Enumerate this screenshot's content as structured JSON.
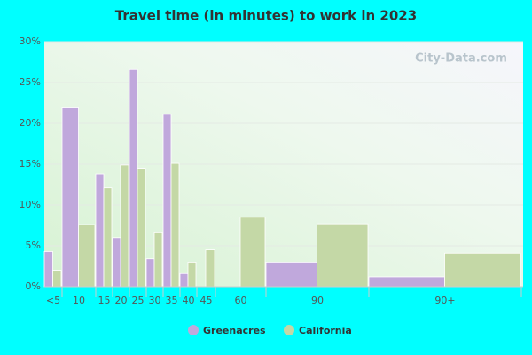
{
  "chart_data": {
    "type": "bar",
    "title": "Travel time (in minutes) to work in 2023",
    "watermark": "City-Data.com",
    "categories": [
      "<5",
      "10",
      "15",
      "20",
      "25",
      "30",
      "35",
      "40",
      "45",
      "60",
      "90",
      "90+"
    ],
    "series": [
      {
        "name": "Greenacres",
        "color": "#c0a8dc",
        "values": [
          4.3,
          21.9,
          13.8,
          6.0,
          26.6,
          3.4,
          21.1,
          1.6,
          0,
          0,
          3.0,
          1.2
        ]
      },
      {
        "name": "California",
        "color": "#c4d8a6",
        "values": [
          2.0,
          7.6,
          12.1,
          14.9,
          14.5,
          6.7,
          15.1,
          3.0,
          4.5,
          8.5,
          7.7,
          4.1
        ]
      }
    ],
    "ylim": [
      0,
      30
    ],
    "yticks": [
      {
        "value": 0,
        "label": "0%"
      },
      {
        "value": 5,
        "label": "5%"
      },
      {
        "value": 10,
        "label": "10%"
      },
      {
        "value": 15,
        "label": "15%"
      },
      {
        "value": 20,
        "label": "20%"
      },
      {
        "value": 25,
        "label": "25%"
      },
      {
        "value": 30,
        "label": "30%"
      }
    ],
    "grid": true
  }
}
